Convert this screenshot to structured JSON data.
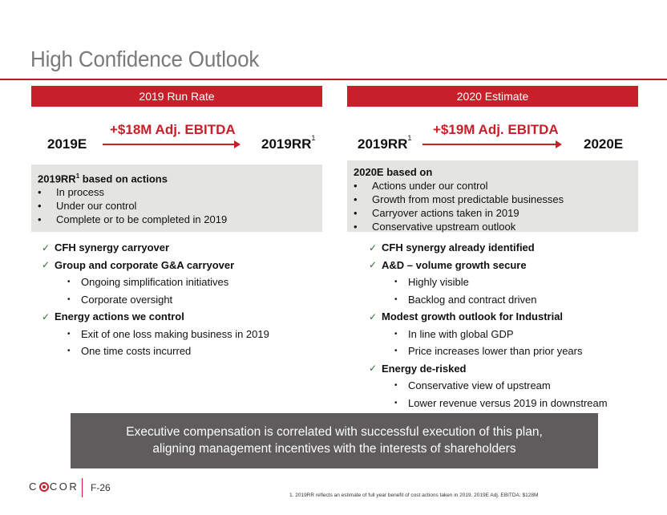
{
  "slide": {
    "title": "High Confidence Outlook",
    "page_number": "F-26",
    "company": "CIRCOR",
    "footnote": "1.       2019RR reflects an estimate of full year benefit of cost actions taken in 2019. 2019E Adj. EBITDA: $128M"
  },
  "left": {
    "header": "2019 Run Rate",
    "from_label": "2019E",
    "to_label": "2019RR",
    "to_sup": "1",
    "delta": "+$18M Adj. EBITDA",
    "box": {
      "head": "2019RR",
      "head_sup": "1",
      "head_rest": " based on actions",
      "bullets": [
        "In process",
        "Under our control",
        "Complete or to be completed in 2019"
      ]
    },
    "items": [
      {
        "text": "CFH synergy carryover",
        "subs": []
      },
      {
        "text": "Group and corporate G&A carryover",
        "subs": [
          "Ongoing simplification initiatives",
          "Corporate oversight"
        ]
      },
      {
        "text": "Energy actions we control",
        "subs": [
          "Exit of one loss making business in 2019",
          "One time costs incurred"
        ]
      }
    ]
  },
  "right": {
    "header": "2020 Estimate",
    "from_label": "2019RR",
    "from_sup": "1",
    "to_label": "2020E",
    "delta": "+$19M Adj. EBITDA",
    "box": {
      "head": "2020E based on",
      "bullets": [
        "Actions under our control",
        "Growth from most predictable businesses",
        "Carryover actions taken in 2019",
        "Conservative upstream outlook"
      ]
    },
    "items": [
      {
        "text": "CFH synergy already identified",
        "subs": []
      },
      {
        "text": "A&D – volume growth secure",
        "subs": [
          "Highly visible",
          "Backlog and contract driven"
        ]
      },
      {
        "text": "Modest growth outlook for Industrial",
        "subs": [
          "In line with global GDP",
          "Price increases lower than prior years"
        ]
      },
      {
        "text": "Energy de-risked",
        "subs": [
          "Conservative view of upstream",
          "Lower revenue versus 2019 in downstream"
        ]
      }
    ]
  },
  "banner": {
    "line1": "Executive compensation is correlated with successful execution of this plan,",
    "line2": "aligning management incentives with the interests of shareholders"
  },
  "glyphs": {
    "check": "✓",
    "bullet": "•"
  },
  "colors": {
    "accent": "#c8202a",
    "title": "#7a7a7a",
    "box": "#e4e4e2",
    "banner": "#5e5c5c"
  }
}
